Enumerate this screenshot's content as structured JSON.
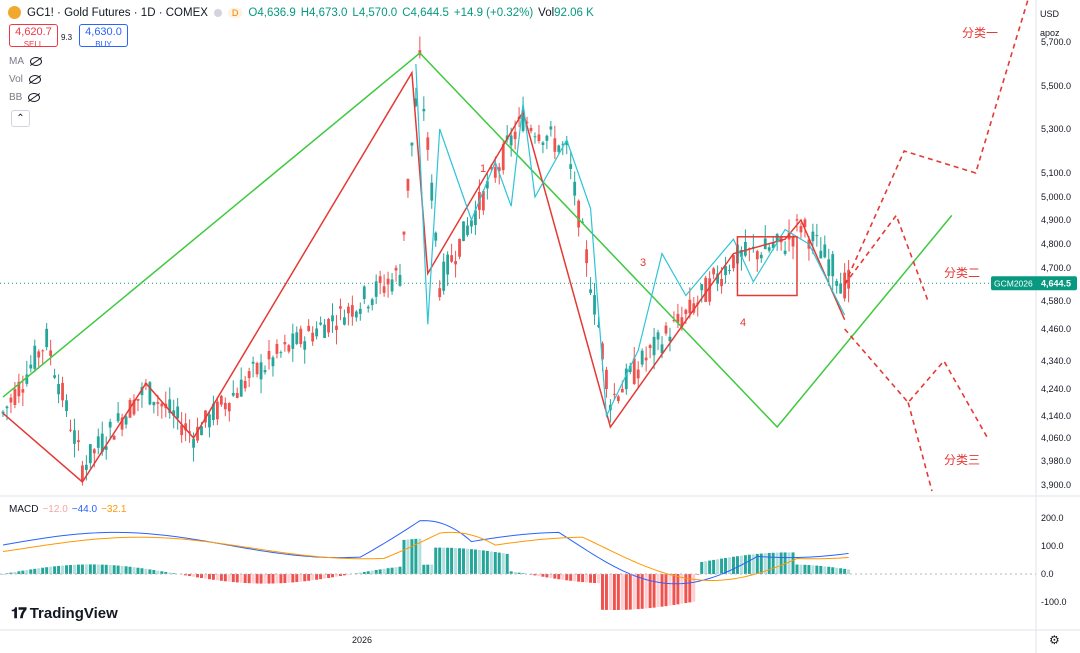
{
  "header": {
    "symbol": "GC1!",
    "name": "Gold Futures",
    "interval": "1D",
    "exchange": "COMEX",
    "badge": "D",
    "open": "O4,636.9",
    "high": "H4,673.0",
    "low": "L4,570.0",
    "close": "C4,644.5",
    "change": "+14.9 (+0.32%)",
    "volume_label": "Vol",
    "volume": "92.06 K"
  },
  "trade": {
    "sell_price": "4,620.7",
    "sell_label": "SELL",
    "spread": "9.3",
    "buy_price": "4,630.0",
    "buy_label": "BUY"
  },
  "indicators": [
    "MA",
    "Vol",
    "BB"
  ],
  "axis": {
    "currency": "USD",
    "sub": "apoz",
    "price_ticks": [
      "5,700.0",
      "5,500.0",
      "5,300.0",
      "5,100.0",
      "5,000.0",
      "4,900.0",
      "4,800.0",
      "4,700.0",
      "4,580.0",
      "4,460.0",
      "4,340.0",
      "4,240.0",
      "4,140.0",
      "4,060.0",
      "3,980.0",
      "3,900.0"
    ],
    "macd_ticks": [
      "200.0",
      "100.0",
      "0.0",
      "-100.0"
    ],
    "time_label": "2026",
    "current_symbol": "GCM2026",
    "current_price": "4,644.5"
  },
  "macd": {
    "label": "MACD",
    "hist": "−12.0",
    "macd": "−44.0",
    "signal": "−32.1"
  },
  "annotations": {
    "wave_one": "分类一",
    "wave_two": "分类二",
    "wave_three": "分类三",
    "stroke_1": "1",
    "stroke_3": "3",
    "stroke_4": "4"
  },
  "brand": "TradingView",
  "colors": {
    "up": "#26a69a",
    "down": "#ef5350",
    "green_line": "#3ec93e",
    "red_line": "#e53935",
    "cyan_line": "#2ec4d6",
    "macd_line": "#2962ff",
    "signal_line": "#ff9800",
    "badge": "#089981"
  },
  "chart_data": {
    "type": "candlestick",
    "price_range": [
      3900,
      5700
    ],
    "swing_points_green": [
      [
        0,
        4210
      ],
      [
        105,
        5650
      ],
      [
        195,
        4100
      ],
      [
        239,
        4920
      ]
    ],
    "swing_points_red": [
      [
        0,
        4150
      ],
      [
        20,
        3910
      ],
      [
        36,
        4260
      ],
      [
        48,
        4060
      ],
      [
        103,
        5560
      ],
      [
        107,
        4680
      ],
      [
        131,
        5380
      ],
      [
        153,
        4100
      ],
      [
        184,
        4760
      ],
      [
        197,
        4820
      ],
      [
        201,
        4900
      ],
      [
        212,
        4500
      ]
    ],
    "projection_one": [
      [
        212,
        4640
      ],
      [
        227,
        5200
      ],
      [
        245,
        5100
      ],
      [
        265,
        6300
      ]
    ],
    "projection_two": [
      [
        212,
        4640
      ],
      [
        225,
        4920
      ],
      [
        233,
        4580
      ]
    ],
    "projection_three": [
      [
        212,
        4460
      ],
      [
        228,
        4190
      ],
      [
        237,
        4340
      ],
      [
        248,
        4060
      ]
    ],
    "projection_three_drop": [
      [
        228,
        4190
      ],
      [
        234,
        3880
      ]
    ]
  }
}
